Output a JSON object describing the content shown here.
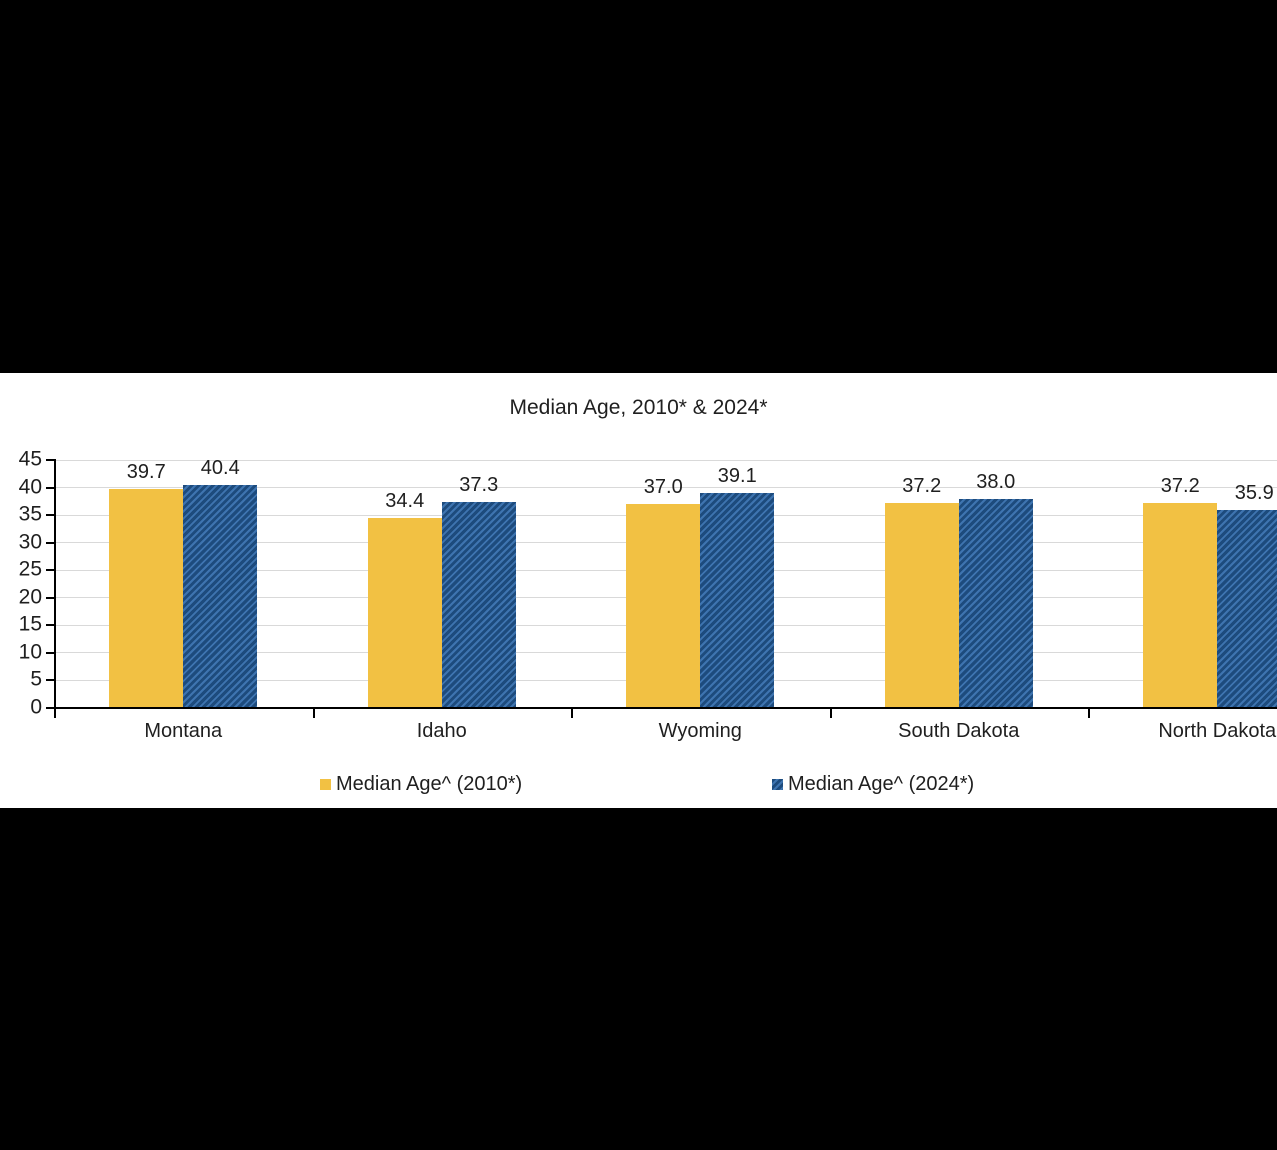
{
  "chart_data": {
    "type": "bar",
    "title": "Median Age, 2010* & 2024*",
    "categories": [
      "Montana",
      "Idaho",
      "Wyoming",
      "South Dakota",
      "North Dakota"
    ],
    "series": [
      {
        "name": "Median Age^ (2010*)",
        "color": "#F2C143",
        "fill": "solid",
        "values": [
          39.7,
          34.4,
          37.0,
          37.2,
          37.2
        ]
      },
      {
        "name": "Median Age^ (2024*)",
        "color": "#2A5D96",
        "fill": "diagonal-hatch",
        "pattern_colors": [
          "#1D4B7D",
          "#3E74B0"
        ],
        "values": [
          40.4,
          37.3,
          39.1,
          38.0,
          35.9
        ]
      }
    ],
    "ylim": [
      0,
      45
    ],
    "ytick_step": 5,
    "grid": true,
    "value_labels": true,
    "legend_position": "bottom"
  },
  "colors": {
    "letterbox": "#000000",
    "panel_background": "#FFFFFF",
    "gridline": "#D9D9D9",
    "axis": "#000000",
    "text": "#1F1F1F"
  }
}
